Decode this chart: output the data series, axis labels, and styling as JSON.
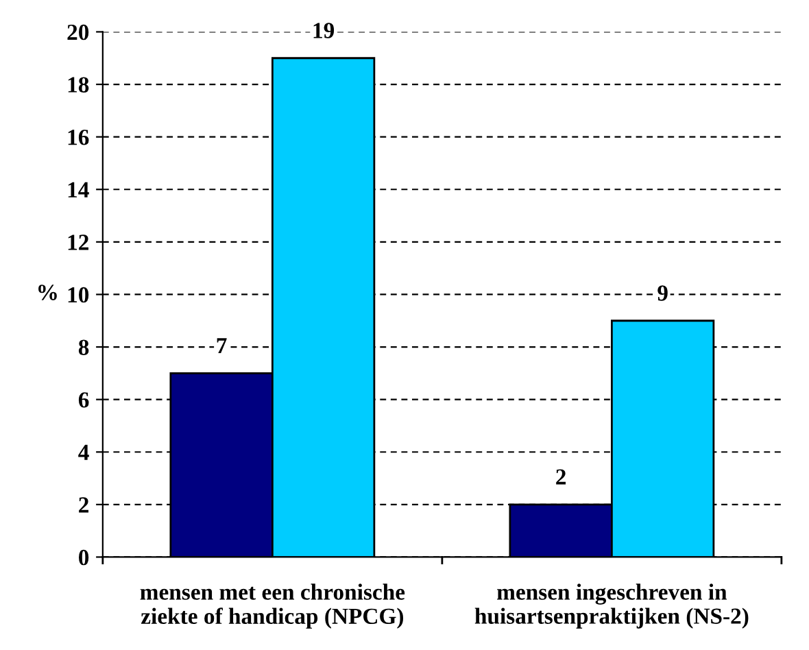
{
  "chart_data": {
    "type": "bar",
    "ylabel": "%",
    "categories": [
      "mensen met een chronische\nziekte of handicap (NPCG)",
      "mensen ingeschreven in\nhuisartsenpraktijken (NS-2)"
    ],
    "series": [
      {
        "color": "#000080",
        "values": [
          7,
          2
        ]
      },
      {
        "color": "#00ccff",
        "values": [
          19,
          9
        ]
      }
    ],
    "ylim": [
      0,
      20
    ],
    "yticks": [
      0,
      2,
      4,
      6,
      8,
      10,
      12,
      14,
      16,
      18,
      20
    ],
    "grid": "y",
    "data_labels": true,
    "line_style": "dashed",
    "legend": false
  }
}
